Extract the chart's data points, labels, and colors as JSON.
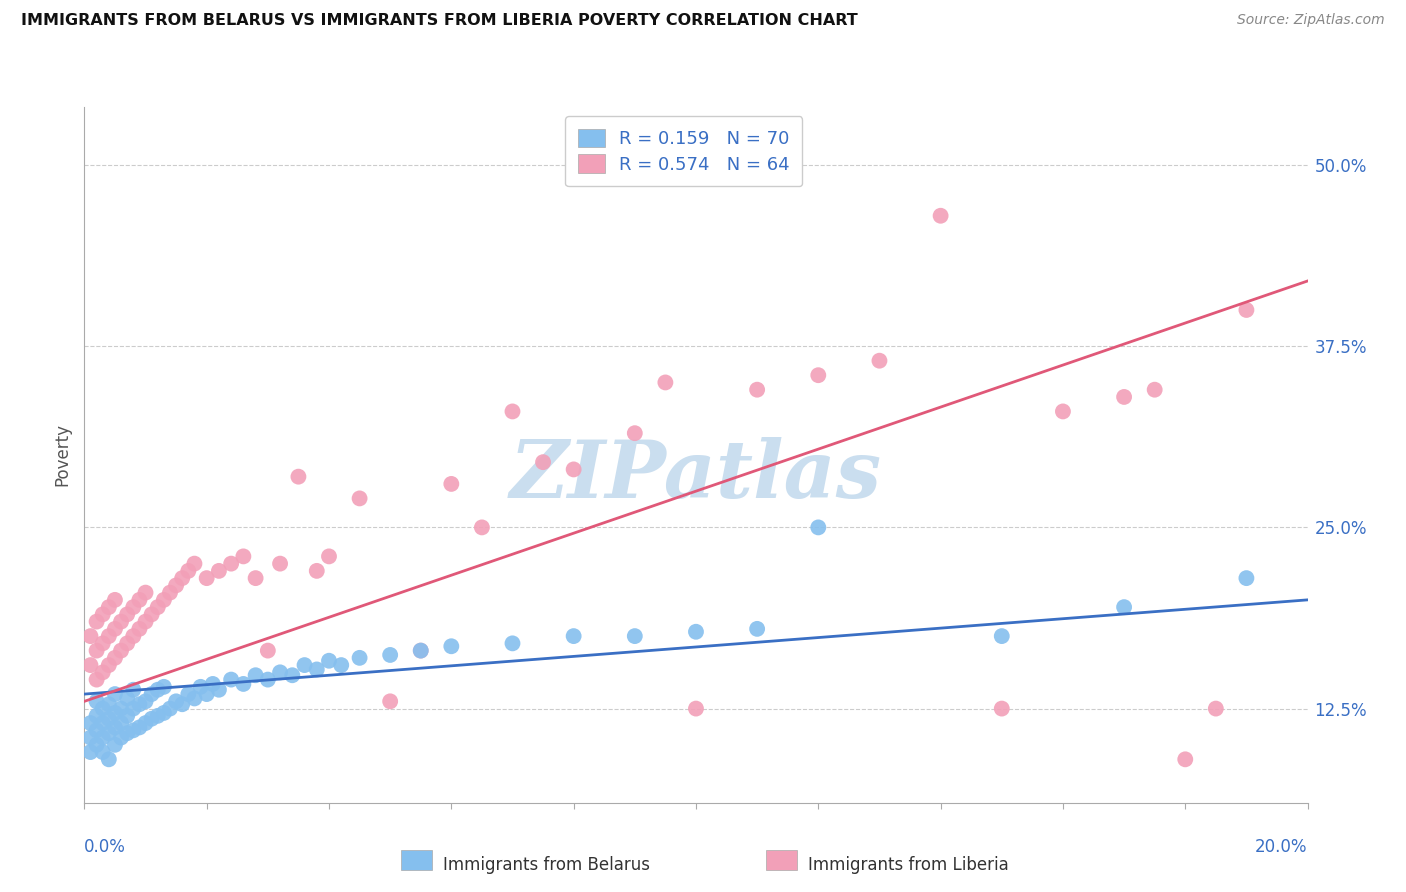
{
  "title": "IMMIGRANTS FROM BELARUS VS IMMIGRANTS FROM LIBERIA POVERTY CORRELATION CHART",
  "source": "Source: ZipAtlas.com",
  "ylabel": "Poverty",
  "ytick_vals": [
    0.125,
    0.25,
    0.375,
    0.5
  ],
  "ytick_labels": [
    "12.5%",
    "25.0%",
    "37.5%",
    "50.0%"
  ],
  "ylim": [
    0.06,
    0.54
  ],
  "xlim": [
    0.0,
    0.2
  ],
  "legend_r_belarus": "R = 0.159",
  "legend_n_belarus": "N = 70",
  "legend_r_liberia": "R = 0.574",
  "legend_n_liberia": "N = 64",
  "color_belarus": "#85BFEE",
  "color_liberia": "#F2A0B8",
  "color_line_belarus": "#3A6FC4",
  "color_line_liberia": "#E05878",
  "watermark": "ZIPatlas",
  "watermark_color": "#CADEEF",
  "belarus_x": [
    0.001,
    0.001,
    0.001,
    0.002,
    0.002,
    0.002,
    0.002,
    0.003,
    0.003,
    0.003,
    0.003,
    0.004,
    0.004,
    0.004,
    0.004,
    0.005,
    0.005,
    0.005,
    0.005,
    0.006,
    0.006,
    0.006,
    0.007,
    0.007,
    0.007,
    0.008,
    0.008,
    0.008,
    0.009,
    0.009,
    0.01,
    0.01,
    0.011,
    0.011,
    0.012,
    0.012,
    0.013,
    0.013,
    0.014,
    0.015,
    0.016,
    0.017,
    0.018,
    0.019,
    0.02,
    0.021,
    0.022,
    0.024,
    0.026,
    0.028,
    0.03,
    0.032,
    0.034,
    0.036,
    0.038,
    0.04,
    0.042,
    0.045,
    0.05,
    0.055,
    0.06,
    0.07,
    0.08,
    0.09,
    0.1,
    0.11,
    0.12,
    0.15,
    0.17,
    0.19
  ],
  "belarus_y": [
    0.105,
    0.095,
    0.115,
    0.1,
    0.11,
    0.12,
    0.13,
    0.095,
    0.105,
    0.115,
    0.125,
    0.09,
    0.108,
    0.118,
    0.128,
    0.1,
    0.112,
    0.122,
    0.135,
    0.105,
    0.115,
    0.125,
    0.108,
    0.12,
    0.132,
    0.11,
    0.125,
    0.138,
    0.112,
    0.128,
    0.115,
    0.13,
    0.118,
    0.135,
    0.12,
    0.138,
    0.122,
    0.14,
    0.125,
    0.13,
    0.128,
    0.135,
    0.132,
    0.14,
    0.135,
    0.142,
    0.138,
    0.145,
    0.142,
    0.148,
    0.145,
    0.15,
    0.148,
    0.155,
    0.152,
    0.158,
    0.155,
    0.16,
    0.162,
    0.165,
    0.168,
    0.17,
    0.175,
    0.175,
    0.178,
    0.18,
    0.25,
    0.175,
    0.195,
    0.215
  ],
  "liberia_x": [
    0.001,
    0.001,
    0.002,
    0.002,
    0.002,
    0.003,
    0.003,
    0.003,
    0.004,
    0.004,
    0.004,
    0.005,
    0.005,
    0.005,
    0.006,
    0.006,
    0.007,
    0.007,
    0.008,
    0.008,
    0.009,
    0.009,
    0.01,
    0.01,
    0.011,
    0.012,
    0.013,
    0.014,
    0.015,
    0.016,
    0.017,
    0.018,
    0.02,
    0.022,
    0.024,
    0.026,
    0.028,
    0.03,
    0.032,
    0.035,
    0.038,
    0.04,
    0.045,
    0.05,
    0.055,
    0.06,
    0.065,
    0.07,
    0.075,
    0.08,
    0.09,
    0.095,
    0.1,
    0.11,
    0.12,
    0.13,
    0.14,
    0.15,
    0.16,
    0.17,
    0.175,
    0.18,
    0.185,
    0.19
  ],
  "liberia_y": [
    0.155,
    0.175,
    0.145,
    0.165,
    0.185,
    0.15,
    0.17,
    0.19,
    0.155,
    0.175,
    0.195,
    0.16,
    0.18,
    0.2,
    0.165,
    0.185,
    0.17,
    0.19,
    0.175,
    0.195,
    0.18,
    0.2,
    0.185,
    0.205,
    0.19,
    0.195,
    0.2,
    0.205,
    0.21,
    0.215,
    0.22,
    0.225,
    0.215,
    0.22,
    0.225,
    0.23,
    0.215,
    0.165,
    0.225,
    0.285,
    0.22,
    0.23,
    0.27,
    0.13,
    0.165,
    0.28,
    0.25,
    0.33,
    0.295,
    0.29,
    0.315,
    0.35,
    0.125,
    0.345,
    0.355,
    0.365,
    0.465,
    0.125,
    0.33,
    0.34,
    0.345,
    0.09,
    0.125,
    0.4
  ]
}
